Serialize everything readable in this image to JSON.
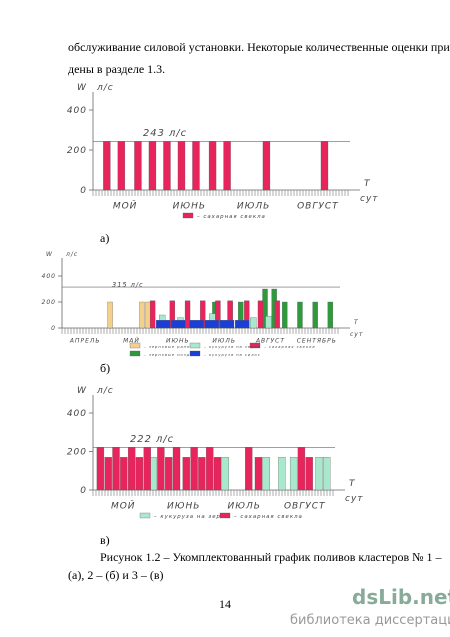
{
  "document": {
    "intro": [
      "обслуживание силовой установки. Некоторые количественные оценки приве-",
      "дены в разделе 1.3."
    ],
    "panel_labels": [
      "а)",
      "б)",
      "в)"
    ],
    "caption": [
      "Рисунок 1.2 – Укомплектованный график поливов кластеров № 1 –",
      "(а), 2 – (б) и 3 – (в)"
    ],
    "page_number": "14",
    "watermark": {
      "brand": "dsLib.net",
      "subtitle": "библиотека диссертаций"
    }
  },
  "chart_data": [
    {
      "type": "bar",
      "ylabel": "W",
      "yunit": "л/с",
      "xlabel": "Т",
      "xunit": "сут",
      "ylim": [
        0,
        400
      ],
      "yticks": [
        0,
        200,
        400
      ],
      "xlim": [
        0,
        124
      ],
      "months": [
        "МОЙ",
        "ИЮНЬ",
        "ИЮЛЬ",
        "ОВГУСТ"
      ],
      "ref_line": 243,
      "annotation": "243 л/с",
      "series": [
        {
          "name": "– сахарная свекла",
          "color": "#e8245c",
          "x": [
            5,
            12,
            20,
            27,
            34,
            41,
            48,
            56,
            63,
            82,
            110
          ],
          "values": [
            243,
            243,
            243,
            243,
            243,
            243,
            243,
            243,
            243,
            243,
            243
          ]
        }
      ]
    },
    {
      "type": "bar",
      "ylabel": "W",
      "yunit": "л/с",
      "xlabel": "Т",
      "xunit": "сут",
      "ylim": [
        0,
        400
      ],
      "yticks": [
        0,
        200,
        400
      ],
      "xlim": [
        0,
        183
      ],
      "months": [
        "АПРЕЛЬ",
        "МАЙ",
        "ИЮНЬ",
        "ИЮЛЬ",
        "АВГУСТ",
        "СЕНТЯБРЬ"
      ],
      "ref_line": 315,
      "annotation": "315 л/с",
      "series": [
        {
          "name": "– зерновые ранние",
          "color": "#f3d08c",
          "x": [
            30,
            51,
            55
          ],
          "values": [
            200,
            200,
            200
          ]
        },
        {
          "name": "– зерновые поздние",
          "color": "#2e9a3c",
          "x": [
            99,
            109,
            116,
            132,
            138,
            145,
            155,
            165,
            175
          ],
          "values": [
            200,
            200,
            200,
            300,
            300,
            200,
            200,
            200,
            200
          ]
        },
        {
          "name": "– сахарная свекла",
          "color": "#e8245c",
          "x": [
            58,
            71,
            81,
            91,
            101,
            109,
            120,
            129,
            140
          ],
          "values": [
            210,
            210,
            210,
            210,
            210,
            210,
            210,
            210,
            210
          ]
        },
        {
          "name": "– кукуруза на зерно",
          "color": "#a8e8cc",
          "x": [
            64,
            76,
            97,
            124,
            134
          ],
          "values": [
            100,
            80,
            110,
            80,
            90
          ]
        },
        {
          "name": "– кукуруза на силос",
          "color": "#1a3fd6",
          "x": [
            62,
            72,
            84,
            94,
            104,
            114
          ],
          "values": [
            60,
            60,
            60,
            60,
            60,
            60
          ]
        }
      ]
    },
    {
      "type": "bar",
      "ylabel": "W",
      "yunit": "л/с",
      "xlabel": "Т",
      "xunit": "сут",
      "ylim": [
        0,
        400
      ],
      "yticks": [
        0,
        200,
        400
      ],
      "xlim": [
        0,
        124
      ],
      "months": [
        "МОЙ",
        "ИЮНЬ",
        "ИЮЛЬ",
        "ОВГУСТ"
      ],
      "ref_line": 222,
      "annotation": "222 л/с",
      "series": [
        {
          "name": "– кукуруза на зерно",
          "color": "#a8e8cc",
          "x": [
            29,
            66,
            87,
            95,
            101,
            114,
            118
          ],
          "values": [
            170,
            170,
            170,
            170,
            170,
            170,
            170
          ]
        },
        {
          "name": "– сахарная свекла",
          "color": "#e8245c",
          "x": [
            2,
            6,
            10,
            14,
            18,
            22,
            26,
            33,
            37,
            41,
            46,
            50,
            54,
            58,
            62,
            78,
            83,
            105,
            109
          ],
          "values": [
            222,
            170,
            222,
            170,
            222,
            170,
            222,
            222,
            170,
            222,
            170,
            222,
            170,
            222,
            170,
            222,
            170,
            222,
            170
          ]
        }
      ]
    }
  ]
}
